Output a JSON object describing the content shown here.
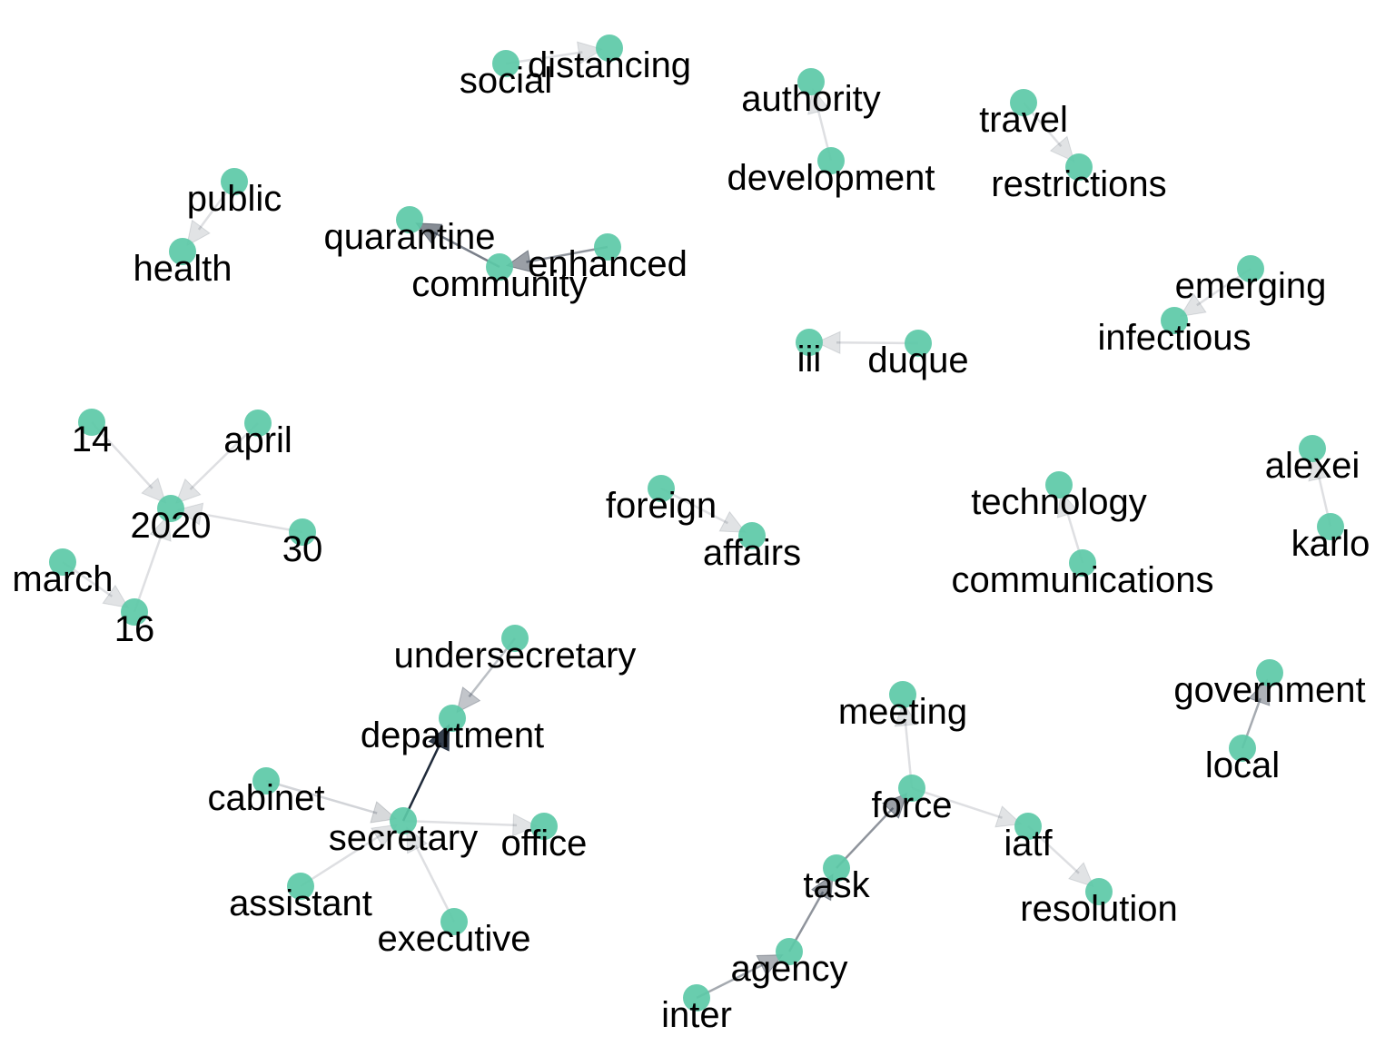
{
  "colors": {
    "node": "#5cc9a7",
    "edge": "#1f2a3a",
    "label": "#000000"
  },
  "nodes": [
    {
      "id": "social"
    },
    {
      "id": "distancing"
    },
    {
      "id": "authority"
    },
    {
      "id": "development"
    },
    {
      "id": "travel"
    },
    {
      "id": "restrictions"
    },
    {
      "id": "public"
    },
    {
      "id": "health"
    },
    {
      "id": "quarantine"
    },
    {
      "id": "enhanced"
    },
    {
      "id": "community"
    },
    {
      "id": "emerging"
    },
    {
      "id": "infectious"
    },
    {
      "id": "iii"
    },
    {
      "id": "duque"
    },
    {
      "id": "14"
    },
    {
      "id": "april"
    },
    {
      "id": "2020"
    },
    {
      "id": "30"
    },
    {
      "id": "march"
    },
    {
      "id": "16"
    },
    {
      "id": "foreign"
    },
    {
      "id": "affairs"
    },
    {
      "id": "technology"
    },
    {
      "id": "communications"
    },
    {
      "id": "alexei"
    },
    {
      "id": "karlo"
    },
    {
      "id": "undersecretary"
    },
    {
      "id": "department"
    },
    {
      "id": "cabinet"
    },
    {
      "id": "secretary"
    },
    {
      "id": "office"
    },
    {
      "id": "assistant"
    },
    {
      "id": "executive"
    },
    {
      "id": "meeting"
    },
    {
      "id": "force"
    },
    {
      "id": "iatf"
    },
    {
      "id": "task"
    },
    {
      "id": "resolution"
    },
    {
      "id": "agency"
    },
    {
      "id": "inter"
    },
    {
      "id": "government"
    },
    {
      "id": "local"
    }
  ],
  "edges": [
    {
      "from": "social",
      "to": "distancing",
      "weight": 0.15
    },
    {
      "from": "development",
      "to": "authority",
      "weight": 0.15
    },
    {
      "from": "travel",
      "to": "restrictions",
      "weight": 0.15
    },
    {
      "from": "public",
      "to": "health",
      "weight": 0.15
    },
    {
      "from": "community",
      "to": "quarantine",
      "weight": 0.6
    },
    {
      "from": "enhanced",
      "to": "community",
      "weight": 0.5
    },
    {
      "from": "emerging",
      "to": "infectious",
      "weight": 0.15
    },
    {
      "from": "duque",
      "to": "iii",
      "weight": 0.15
    },
    {
      "from": "14",
      "to": "2020",
      "weight": 0.15
    },
    {
      "from": "april",
      "to": "2020",
      "weight": 0.15
    },
    {
      "from": "30",
      "to": "2020",
      "weight": 0.15
    },
    {
      "from": "march",
      "to": "16",
      "weight": 0.15
    },
    {
      "from": "16",
      "to": "2020",
      "weight": 0.15
    },
    {
      "from": "foreign",
      "to": "affairs",
      "weight": 0.15
    },
    {
      "from": "communications",
      "to": "technology",
      "weight": 0.15
    },
    {
      "from": "karlo",
      "to": "alexei",
      "weight": 0.15
    },
    {
      "from": "undersecretary",
      "to": "department",
      "weight": 0.3
    },
    {
      "from": "secretary",
      "to": "department",
      "weight": 1.0
    },
    {
      "from": "cabinet",
      "to": "secretary",
      "weight": 0.2
    },
    {
      "from": "secretary",
      "to": "office",
      "weight": 0.15
    },
    {
      "from": "assistant",
      "to": "secretary",
      "weight": 0.15
    },
    {
      "from": "executive",
      "to": "secretary",
      "weight": 0.15
    },
    {
      "from": "force",
      "to": "meeting",
      "weight": 0.15
    },
    {
      "from": "task",
      "to": "force",
      "weight": 0.5
    },
    {
      "from": "force",
      "to": "iatf",
      "weight": 0.15
    },
    {
      "from": "iatf",
      "to": "resolution",
      "weight": 0.15
    },
    {
      "from": "agency",
      "to": "task",
      "weight": 0.5
    },
    {
      "from": "inter",
      "to": "agency",
      "weight": 0.4
    },
    {
      "from": "local",
      "to": "government",
      "weight": 0.4
    }
  ]
}
